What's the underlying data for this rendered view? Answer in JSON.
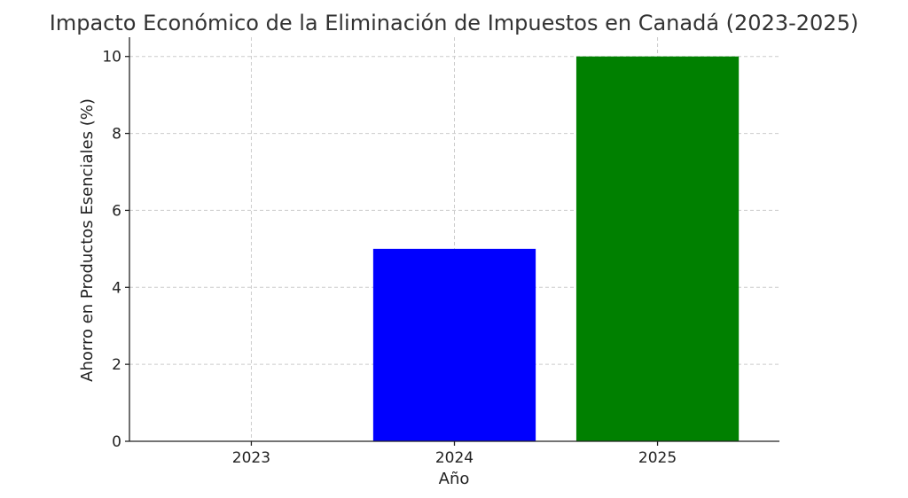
{
  "chart_data": {
    "type": "bar",
    "title": "Impacto Económico de la Eliminación de Impuestos en Canadá (2023-2025)",
    "xlabel": "Año",
    "ylabel": "Ahorro en Productos Esenciales (%)",
    "categories": [
      "2023",
      "2024",
      "2025"
    ],
    "values": [
      0,
      5,
      10
    ],
    "colors": [
      "#ff0000",
      "#0000ff",
      "#008000"
    ],
    "ylim": [
      0,
      10.5
    ],
    "yticks": [
      0,
      2,
      4,
      6,
      8,
      10
    ],
    "grid": true
  }
}
